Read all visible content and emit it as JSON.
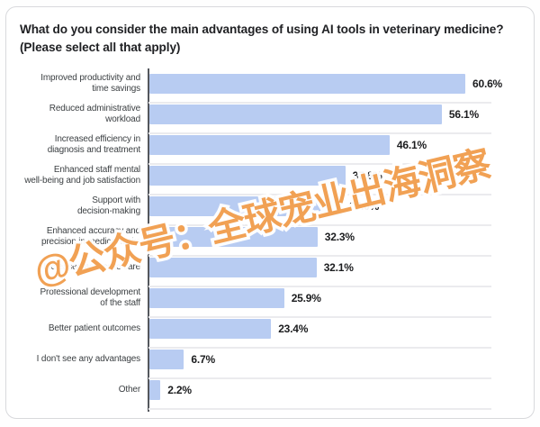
{
  "card": {
    "title_lines": [
      "What do you consider the main advantages of using AI tools in veterinary medicine?",
      "(Please select all that apply)"
    ]
  },
  "watermark": {
    "text": "@公众号：全球宠业出海洞察",
    "color": "#f09a47"
  },
  "colors": {
    "bar": "#b8ccf2",
    "axis": "#54575d",
    "row_separator": "#ebebee",
    "title_text": "#202124",
    "category_text": "#3c4043",
    "value_text": "#1b1c1e",
    "card_border": "#d8d9dc"
  },
  "chart_data": {
    "type": "bar",
    "orientation": "horizontal",
    "title": "What do you consider the main advantages of using AI tools in veterinary medicine? (Please select all that apply)",
    "categories": [
      "Improved productivity and time savings",
      "Reduced administrative workload",
      "Increased efficiency in diagnosis and treatment",
      "Enhanced staff mental well-being and job satisfaction",
      "Support with decision-making",
      "Enhanced accuracy and precision in medical tasks",
      "Increased access to care",
      "Professional development of the staff",
      "Better patient outcomes",
      "I don't see any advantages",
      "Other"
    ],
    "category_lines": [
      [
        "Improved productivity and",
        "time savings"
      ],
      [
        "Reduced administrative",
        "workload"
      ],
      [
        "Increased efficiency in",
        "diagnosis and treatment"
      ],
      [
        "Enhanced staff mental",
        "well-being and job satisfaction"
      ],
      [
        "Support with",
        "decision-making"
      ],
      [
        "Enhanced accuracy and",
        "precision in medical tasks"
      ],
      [
        "Increased access to care"
      ],
      [
        "Professional development",
        "of the staff"
      ],
      [
        "Better patient outcomes"
      ],
      [
        "I don't see any advantages"
      ],
      [
        "Other"
      ]
    ],
    "values": [
      60.6,
      56.1,
      46.1,
      37.6,
      37.0,
      32.3,
      32.1,
      25.9,
      23.4,
      6.7,
      2.2
    ],
    "value_labels": [
      "60.6%",
      "56.1%",
      "46.1%",
      "37.6%",
      "37.0%",
      "32.3%",
      "32.1%",
      "25.9%",
      "23.4%",
      "6.7%",
      "2.2%"
    ],
    "unit": "%",
    "xlim": [
      0,
      66
    ],
    "xlabel": "",
    "ylabel": "",
    "legend": "none",
    "grid": "row-separator-lines",
    "sort": "descending"
  }
}
